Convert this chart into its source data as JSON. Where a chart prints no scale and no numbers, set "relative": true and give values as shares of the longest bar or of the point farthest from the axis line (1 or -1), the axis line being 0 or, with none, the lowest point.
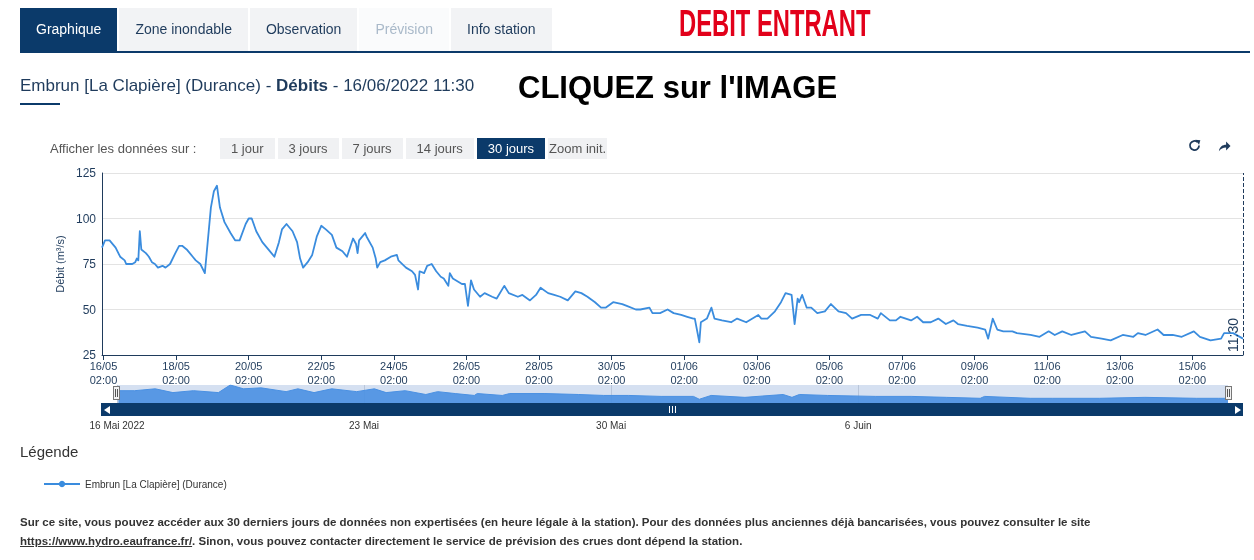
{
  "chart_data": [
    {
      "type": "line",
      "title": "DEBIT ENTRANT",
      "subtitle": "Embrun [La Clapière] (Durance) - Débits - 16/06/2022 11:30",
      "ylabel": "Débit (m³/s)",
      "x": [
        "2022-05-16T01:00",
        "2022-05-16T03:00",
        "2022-05-16T06:00",
        "2022-05-16T10:00",
        "2022-05-16T13:00",
        "2022-05-16T16:00",
        "2022-05-16T17:00",
        "2022-05-16T21:00",
        "2022-05-16T23:00",
        "2022-05-17T00:00",
        "2022-05-17T01:00",
        "2022-05-17T02:00",
        "2022-05-17T03:00",
        "2022-05-17T06:00",
        "2022-05-17T08:00",
        "2022-05-17T10:00",
        "2022-05-17T12:00",
        "2022-05-17T14:00",
        "2022-05-17T17:00",
        "2022-05-17T19:00",
        "2022-05-17T22:00",
        "2022-05-18T01:30",
        "2022-05-18T04:00",
        "2022-05-18T06:00",
        "2022-05-18T09:00",
        "2022-05-18T13:00",
        "2022-05-18T15:00",
        "2022-05-18T18:00",
        "2022-05-18T21:00",
        "2022-05-19T01:00",
        "2022-05-19T03:00",
        "2022-05-19T05:00",
        "2022-05-19T07:00",
        "2022-05-19T10:00",
        "2022-05-19T14:00",
        "2022-05-19T17:00",
        "2022-05-19T20:00",
        "2022-05-20T00:00",
        "2022-05-20T02:00",
        "2022-05-20T04:00",
        "2022-05-20T07:00",
        "2022-05-20T11:00",
        "2022-05-20T15:00",
        "2022-05-20T19:00",
        "2022-05-20T22:00",
        "2022-05-21T00:00",
        "2022-05-21T03:00",
        "2022-05-21T07:00",
        "2022-05-21T10:00",
        "2022-05-21T12:00",
        "2022-05-21T14:00",
        "2022-05-21T17:00",
        "2022-05-21T20:00",
        "2022-05-21T23:00",
        "2022-05-22T02:00",
        "2022-05-22T05:00",
        "2022-05-22T09:00",
        "2022-05-22T12:00",
        "2022-05-22T16:00",
        "2022-05-22T19:00",
        "2022-05-22T23:00",
        "2022-05-23T01:00",
        "2022-05-23T02:00",
        "2022-05-23T03:00",
        "2022-05-23T07:00",
        "2022-05-23T08:00",
        "2022-05-23T12:00",
        "2022-05-23T14:00",
        "2022-05-23T15:00",
        "2022-05-23T17:00",
        "2022-05-23T20:00",
        "2022-05-24T00:00",
        "2022-05-24T04:00",
        "2022-05-24T05:00",
        "2022-05-24T10:00",
        "2022-05-24T14:00",
        "2022-05-24T16:00",
        "2022-05-24T18:00",
        "2022-05-24T19:00",
        "2022-05-24T22:00",
        "2022-05-25T00:00",
        "2022-05-25T03:00",
        "2022-05-25T06:00",
        "2022-05-25T09:00",
        "2022-05-25T11:00",
        "2022-05-25T14:00",
        "2022-05-25T15:00",
        "2022-05-25T17:00",
        "2022-05-25T23:00",
        "2022-05-26T01:00",
        "2022-05-26T03:00",
        "2022-05-26T05:00",
        "2022-05-26T07:00",
        "2022-05-26T11:00",
        "2022-05-26T14:00",
        "2022-05-26T19:00",
        "2022-05-26T22:00",
        "2022-05-27T03:00",
        "2022-05-27T06:00",
        "2022-05-27T12:00",
        "2022-05-27T15:00",
        "2022-05-27T20:00",
        "2022-05-28T00:00",
        "2022-05-28T03:00",
        "2022-05-28T08:00",
        "2022-05-28T12:00",
        "2022-05-28T16:00",
        "2022-05-28T21:00",
        "2022-05-29T02:00",
        "2022-05-29T06:00",
        "2022-05-29T10:00",
        "2022-05-29T15:00",
        "2022-05-29T19:00",
        "2022-05-29T22:00",
        "2022-05-30T03:00",
        "2022-05-30T09:00",
        "2022-05-30T12:00",
        "2022-05-30T18:00",
        "2022-05-30T21:00",
        "2022-05-31T03:00",
        "2022-05-31T05:00",
        "2022-05-31T10:00",
        "2022-05-31T15:00",
        "2022-05-31T19:00",
        "2022-06-01T00:00",
        "2022-06-01T04:00",
        "2022-06-01T08:00",
        "2022-06-01T09:00",
        "2022-06-01T12:00",
        "2022-06-01T13:00",
        "2022-06-01T17:00",
        "2022-06-01T20:00",
        "2022-06-01T22:00",
        "2022-06-02T03:00",
        "2022-06-02T09:00",
        "2022-06-02T13:00",
        "2022-06-02T19:00",
        "2022-06-03T03:00",
        "2022-06-03T05:00",
        "2022-06-03T09:00",
        "2022-06-03T14:00",
        "2022-06-03T18:00",
        "2022-06-03T21:00",
        "2022-06-04T01:00",
        "2022-06-04T03:00",
        "2022-06-04T05:00",
        "2022-06-04T06:00",
        "2022-06-04T08:00",
        "2022-06-04T11:00",
        "2022-06-04T14:00",
        "2022-06-04T18:00",
        "2022-06-04T23:00",
        "2022-06-05T03:00",
        "2022-06-05T08:00",
        "2022-06-05T13:00",
        "2022-06-05T17:00",
        "2022-06-05T23:00",
        "2022-06-06T05:00",
        "2022-06-06T10:00",
        "2022-06-06T12:00",
        "2022-06-06T18:00",
        "2022-06-06T22:00",
        "2022-06-07T01:00",
        "2022-06-07T08:00",
        "2022-06-07T12:00",
        "2022-06-07T16:00",
        "2022-06-07T21:00",
        "2022-06-08T02:00",
        "2022-06-08T07:00",
        "2022-06-08T12:00",
        "2022-06-08T15:00",
        "2022-06-08T21:00",
        "2022-06-09T04:00",
        "2022-06-09T09:00",
        "2022-06-09T11:00",
        "2022-06-09T14:00",
        "2022-06-09T17:00",
        "2022-06-09T21:00",
        "2022-06-10T03:00",
        "2022-06-10T06:00",
        "2022-06-10T15:00",
        "2022-06-10T21:00",
        "2022-06-11T03:00",
        "2022-06-11T07:00",
        "2022-06-11T12:00",
        "2022-06-11T18:00",
        "2022-06-12T03:00",
        "2022-06-12T07:00",
        "2022-06-12T14:00",
        "2022-06-12T20:00",
        "2022-06-13T04:00",
        "2022-06-13T11:00",
        "2022-06-13T14:00",
        "2022-06-13T19:00",
        "2022-06-14T03:00",
        "2022-06-14T07:00",
        "2022-06-14T13:00",
        "2022-06-14T19:00",
        "2022-06-15T03:00",
        "2022-06-15T07:00",
        "2022-06-15T14:00",
        "2022-06-15T21:00",
        "2022-06-15T23:00",
        "2022-06-16T05:00",
        "2022-06-16T11:30"
      ],
      "series": [
        {
          "name": "Embrun [La Clapière] (Durance)",
          "color": "#3a8cde",
          "values": [
            84,
            88,
            88,
            84,
            79,
            77,
            75,
            75,
            76,
            78,
            77,
            93,
            83,
            81,
            79,
            76,
            75,
            73,
            74,
            73,
            75,
            81,
            85,
            85,
            83,
            79,
            77,
            75,
            70,
            106,
            115,
            118,
            106,
            98,
            92,
            88,
            88,
            97,
            100,
            100,
            93,
            87,
            83,
            79,
            87,
            94,
            97,
            93,
            87,
            78,
            73,
            76,
            80,
            90,
            96,
            94,
            91,
            84,
            82,
            79,
            89,
            86,
            81,
            88,
            92,
            90,
            84,
            78,
            73,
            76,
            77,
            79,
            80,
            77,
            73,
            71,
            69,
            61,
            71,
            70,
            74,
            75,
            71,
            68,
            67,
            63,
            70,
            67,
            64,
            64,
            52,
            66,
            61,
            57,
            59,
            57,
            56,
            63,
            59,
            57,
            58,
            55,
            58,
            62,
            59,
            58,
            57,
            55,
            60,
            59,
            57,
            54,
            51,
            51,
            54,
            53,
            52,
            50,
            50,
            51,
            48,
            48,
            50,
            48,
            47,
            46,
            45,
            45,
            32,
            43,
            45,
            51,
            45,
            44,
            43,
            45,
            43,
            47,
            45,
            45,
            49,
            54,
            59,
            58,
            42,
            56,
            54,
            58,
            51,
            51,
            48,
            49,
            53,
            49,
            48,
            45,
            47,
            47,
            45,
            48,
            44,
            44,
            46,
            44,
            46,
            43,
            43,
            45,
            42,
            44,
            42,
            41,
            40,
            39,
            34,
            45,
            39,
            38,
            38,
            37,
            36,
            35,
            38,
            36,
            38,
            36,
            38,
            35,
            34,
            33,
            36,
            35,
            37,
            36,
            39,
            36,
            36,
            35,
            38,
            35,
            33,
            34,
            37,
            37,
            34
          ]
        }
      ],
      "xlim": [
        "2022-05-16T01:00",
        "2022-06-16T11:30"
      ],
      "ylim": [
        25,
        125
      ],
      "xticks": [
        {
          "value": "2022-05-16T02:00",
          "label": "16/05\n02:00"
        },
        {
          "value": "2022-05-18T02:00",
          "label": "18/05\n02:00"
        },
        {
          "value": "2022-05-20T02:00",
          "label": "20/05\n02:00"
        },
        {
          "value": "2022-05-22T02:00",
          "label": "22/05\n02:00"
        },
        {
          "value": "2022-05-24T02:00",
          "label": "24/05\n02:00"
        },
        {
          "value": "2022-05-26T02:00",
          "label": "26/05\n02:00"
        },
        {
          "value": "2022-05-28T02:00",
          "label": "28/05\n02:00"
        },
        {
          "value": "2022-05-30T02:00",
          "label": "30/05\n02:00"
        },
        {
          "value": "2022-06-01T02:00",
          "label": "01/06\n02:00"
        },
        {
          "value": "2022-06-03T02:00",
          "label": "03/06\n02:00"
        },
        {
          "value": "2022-06-05T02:00",
          "label": "05/06\n02:00"
        },
        {
          "value": "2022-06-07T02:00",
          "label": "07/06\n02:00"
        },
        {
          "value": "2022-06-09T02:00",
          "label": "09/06\n02:00"
        },
        {
          "value": "2022-06-11T02:00",
          "label": "11/06\n02:00"
        },
        {
          "value": "2022-06-13T02:00",
          "label": "13/06\n02:00"
        },
        {
          "value": "2022-06-15T02:00",
          "label": "15/06\n02:00"
        }
      ],
      "yticks": [
        25,
        50,
        75,
        100,
        125
      ],
      "grid": "y",
      "legend": "bottom left",
      "ref_lines": [
        {
          "axis": "x",
          "value": "2022-06-16T11:30",
          "label": "11:30",
          "color": "#1f3b5c",
          "line_style": "dashed"
        }
      ],
      "annotations": [
        "CLIQUEZ sur l'IMAGE",
        "Graphique",
        "Zone inondable",
        "Observation",
        "Prévision",
        "Info station",
        "Afficher les données sur :",
        "1 jour",
        "3 jours",
        "7 jours",
        "14 jours",
        "30 jours",
        "Zoom init.",
        "Légende",
        "Sur ce site, vous pouvez accéder aux 30 derniers jours de données non expertisées (en heure légale à la station). Pour des données plus anciennes déjà bancarisées, vous pouvez consulter le site https://www.hydro.eaufrance.fr/. Sinon, vous pouvez contacter directement le service de prévision des crues dont dépend la station."
      ]
    },
    {
      "type": "area",
      "relative": true,
      "tick_labels": "x",
      "grid": "x",
      "color": "#4a90e2",
      "x": [
        "2022-05-16T01:00",
        "2022-05-16T12:00",
        "2022-05-17T02:00",
        "2022-05-17T14:00",
        "2022-05-18T04:00",
        "2022-05-18T21:00",
        "2022-05-19T05:00",
        "2022-05-19T14:00",
        "2022-05-20T02:00",
        "2022-05-20T19:00",
        "2022-05-21T03:00",
        "2022-05-21T14:00",
        "2022-05-22T02:00",
        "2022-05-22T19:00",
        "2022-05-23T07:00",
        "2022-05-23T15:00",
        "2022-05-24T04:00",
        "2022-05-24T18:00",
        "2022-05-25T02:00",
        "2022-05-25T14:00",
        "2022-05-26T03:00",
        "2022-05-26T05:00",
        "2022-05-26T22:00",
        "2022-05-27T03:00",
        "2022-05-28T03:00",
        "2022-05-29T02:00",
        "2022-05-29T19:00",
        "2022-05-30T12:00",
        "2022-05-31T10:00",
        "2022-06-01T08:00",
        "2022-06-01T12:00",
        "2022-06-01T20:00",
        "2022-06-02T19:00",
        "2022-06-03T21:00",
        "2022-06-04T03:00",
        "2022-06-04T08:00",
        "2022-06-05T03:00",
        "2022-06-06T12:00",
        "2022-06-07T12:00",
        "2022-06-08T12:00",
        "2022-06-09T11:00",
        "2022-06-09T14:00",
        "2022-06-10T21:00",
        "2022-06-11T12:00",
        "2022-06-12T20:00",
        "2022-06-14T03:00",
        "2022-06-15T14:00",
        "2022-06-16T05:00",
        "2022-06-16T11:30"
      ],
      "values": [
        0.7,
        0.7,
        0.8,
        0.6,
        0.7,
        0.6,
        1,
        0.8,
        0.85,
        0.65,
        0.8,
        0.6,
        0.8,
        0.65,
        0.8,
        0.6,
        0.7,
        0.5,
        0.65,
        0.55,
        0.45,
        0.55,
        0.45,
        0.55,
        0.55,
        0.5,
        0.45,
        0.45,
        0.4,
        0.4,
        0.25,
        0.45,
        0.35,
        0.5,
        0.35,
        0.5,
        0.45,
        0.4,
        0.4,
        0.35,
        0.3,
        0.4,
        0.3,
        0.3,
        0.3,
        0.35,
        0.3,
        0.3,
        0.3
      ],
      "xlim": [
        "2022-05-16T00:00",
        "2022-06-16T11:30"
      ],
      "xticks": [
        {
          "value": "2022-05-16",
          "label": "16 Mai 2022"
        },
        {
          "value": "2022-05-23",
          "label": "23 Mai"
        },
        {
          "value": "2022-05-30",
          "label": "30 Mai"
        },
        {
          "value": "2022-06-06",
          "label": "6 Juin"
        }
      ]
    }
  ]
}
